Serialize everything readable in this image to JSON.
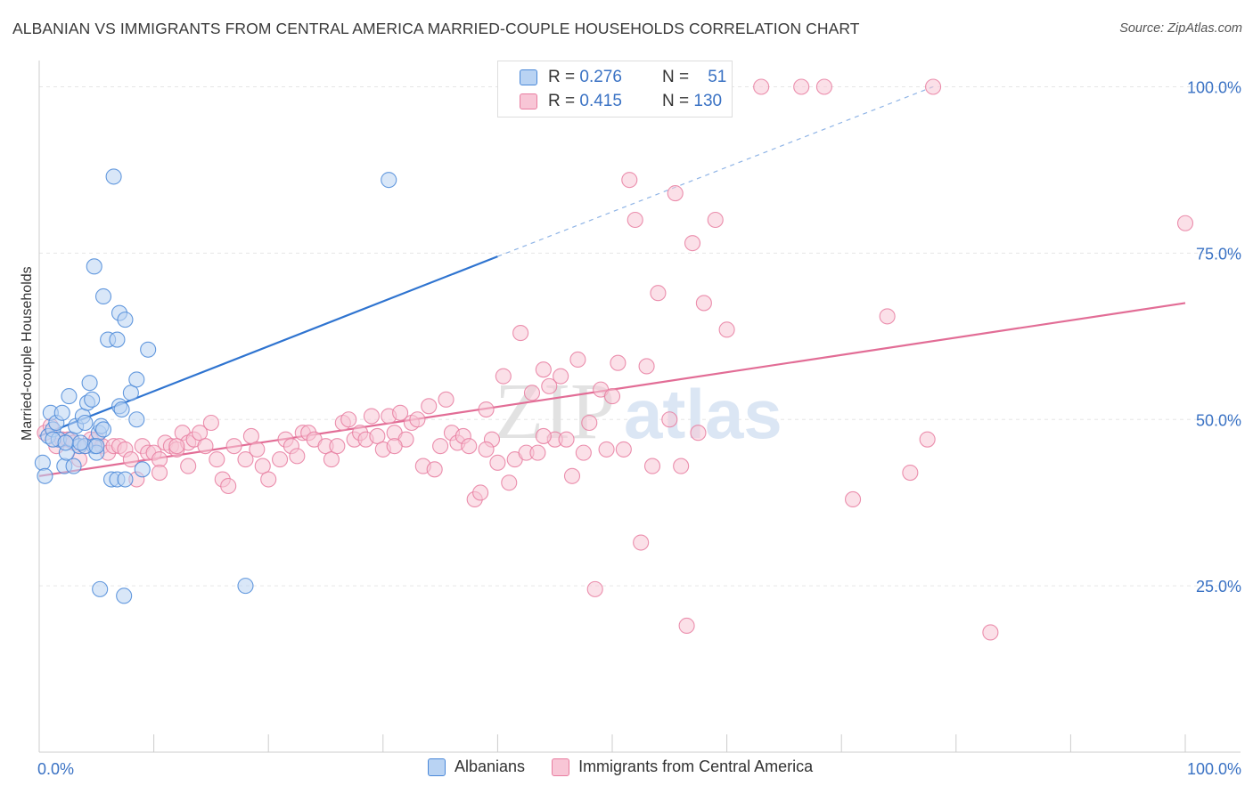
{
  "title": "ALBANIAN VS IMMIGRANTS FROM CENTRAL AMERICA MARRIED-COUPLE HOUSEHOLDS CORRELATION CHART",
  "source": "Source: ZipAtlas.com",
  "watermark": {
    "zip": "ZIP",
    "atlas": "atlas"
  },
  "legend": {
    "r_label": "R =",
    "n_label": "N =",
    "rows": [
      {
        "r": "0.276",
        "n": "51",
        "color": "#4a88d8",
        "fill": "#b9d3f3"
      },
      {
        "r": "0.415",
        "n": "130",
        "color": "#e87da0",
        "fill": "#f8c6d6"
      }
    ]
  },
  "bottom_legend": [
    "Albanians",
    "Immigrants from Central America"
  ],
  "chart_data": {
    "type": "scatter",
    "xlabel": "",
    "ylabel": "Married-couple Households",
    "x_tick_labels": [
      "0.0%",
      "100.0%"
    ],
    "y_tick_labels": [
      "100.0%",
      "75.0%",
      "50.0%",
      "25.0%"
    ],
    "y_ticks": [
      100,
      75,
      50,
      25
    ],
    "xlim": [
      0,
      100
    ],
    "ylim": [
      0,
      102
    ],
    "grid": "horizontal dashed",
    "series": [
      {
        "name": "Albanians",
        "color": "#4a88d8",
        "fill": "#b9d3f3",
        "trend": {
          "x0": 0,
          "y0": 47.5,
          "x1": 40,
          "y1": 74.5,
          "dashed_to_x": 78,
          "dashed_to_y": 100
        },
        "points": [
          [
            0.3,
            43.5
          ],
          [
            0.5,
            41.5
          ],
          [
            0.8,
            47.5
          ],
          [
            1.0,
            51
          ],
          [
            1.2,
            48.5
          ],
          [
            1.5,
            49.5
          ],
          [
            1.7,
            47
          ],
          [
            2.0,
            51
          ],
          [
            2.2,
            43
          ],
          [
            2.4,
            45
          ],
          [
            2.6,
            53.5
          ],
          [
            2.8,
            47
          ],
          [
            3.0,
            43
          ],
          [
            3.2,
            49
          ],
          [
            3.5,
            46
          ],
          [
            3.8,
            50.5
          ],
          [
            4.0,
            49.5
          ],
          [
            4.2,
            52.5
          ],
          [
            4.4,
            55.5
          ],
          [
            4.6,
            53
          ],
          [
            4.8,
            46
          ],
          [
            5.0,
            45
          ],
          [
            5.2,
            48
          ],
          [
            5.4,
            49
          ],
          [
            5.6,
            48.5
          ],
          [
            4.0,
            46
          ],
          [
            3.6,
            46.5
          ],
          [
            5.0,
            46
          ],
          [
            7.0,
            52
          ],
          [
            8.0,
            54
          ],
          [
            8.5,
            50
          ],
          [
            6.0,
            62
          ],
          [
            6.5,
            86.5
          ],
          [
            4.8,
            73
          ],
          [
            5.6,
            68.5
          ],
          [
            6.8,
            62
          ],
          [
            6.3,
            41
          ],
          [
            6.8,
            41
          ],
          [
            7.0,
            66
          ],
          [
            7.5,
            65
          ],
          [
            8.5,
            56
          ],
          [
            9.5,
            60.5
          ],
          [
            7.5,
            41
          ],
          [
            9.0,
            42.5
          ],
          [
            5.3,
            24.5
          ],
          [
            7.4,
            23.5
          ],
          [
            18.0,
            25
          ],
          [
            30.5,
            86
          ],
          [
            7.2,
            51.5
          ],
          [
            1.2,
            47
          ],
          [
            2.3,
            46.5
          ]
        ]
      },
      {
        "name": "Immigrants from Central America",
        "color": "#e87da0",
        "fill": "#f8c6d6",
        "trend": {
          "x0": 0,
          "y0": 41.5,
          "x1": 100,
          "y1": 67.5
        },
        "points": [
          [
            0.5,
            48
          ],
          [
            1.0,
            49
          ],
          [
            1.5,
            46
          ],
          [
            2.0,
            47
          ],
          [
            2.5,
            47
          ],
          [
            3.0,
            46.5
          ],
          [
            3.5,
            44
          ],
          [
            4.0,
            46
          ],
          [
            4.5,
            47
          ],
          [
            5.0,
            47
          ],
          [
            5.5,
            46
          ],
          [
            6.0,
            45
          ],
          [
            6.5,
            46
          ],
          [
            7.0,
            46
          ],
          [
            7.5,
            45.5
          ],
          [
            8.0,
            44
          ],
          [
            8.5,
            41
          ],
          [
            9.0,
            46
          ],
          [
            9.5,
            45
          ],
          [
            10.0,
            45
          ],
          [
            10.5,
            44
          ],
          [
            11.0,
            46.5
          ],
          [
            11.5,
            46
          ],
          [
            12.0,
            45.5
          ],
          [
            12.5,
            48
          ],
          [
            13.0,
            46.5
          ],
          [
            13.5,
            47
          ],
          [
            14.0,
            48
          ],
          [
            14.5,
            46
          ],
          [
            15.0,
            49.5
          ],
          [
            15.5,
            44
          ],
          [
            16.0,
            41
          ],
          [
            16.5,
            40
          ],
          [
            17.0,
            46
          ],
          [
            18.0,
            44
          ],
          [
            18.5,
            47.5
          ],
          [
            19.0,
            45.5
          ],
          [
            19.5,
            43
          ],
          [
            20.0,
            41
          ],
          [
            21.0,
            44
          ],
          [
            21.5,
            47
          ],
          [
            22.0,
            46
          ],
          [
            23.0,
            48
          ],
          [
            23.5,
            48
          ],
          [
            24.0,
            47
          ],
          [
            25.0,
            46
          ],
          [
            25.5,
            44
          ],
          [
            26.0,
            46
          ],
          [
            26.5,
            49.5
          ],
          [
            27.0,
            50
          ],
          [
            27.5,
            47
          ],
          [
            28.0,
            48
          ],
          [
            28.5,
            47
          ],
          [
            29.0,
            50.5
          ],
          [
            29.5,
            47.5
          ],
          [
            30.0,
            45.5
          ],
          [
            30.5,
            50.5
          ],
          [
            31.0,
            48
          ],
          [
            31.5,
            51
          ],
          [
            32.0,
            47
          ],
          [
            32.5,
            49.5
          ],
          [
            33.0,
            50
          ],
          [
            33.5,
            43
          ],
          [
            34.0,
            52
          ],
          [
            34.5,
            42.5
          ],
          [
            35.0,
            46
          ],
          [
            35.5,
            53
          ],
          [
            36.0,
            48
          ],
          [
            36.5,
            46.5
          ],
          [
            37.0,
            47.5
          ],
          [
            37.5,
            46
          ],
          [
            38.0,
            38
          ],
          [
            38.5,
            39
          ],
          [
            39.0,
            51.5
          ],
          [
            39.5,
            47
          ],
          [
            40.0,
            43.5
          ],
          [
            40.5,
            56.5
          ],
          [
            41.0,
            40.5
          ],
          [
            41.5,
            44
          ],
          [
            42.0,
            63
          ],
          [
            42.5,
            45
          ],
          [
            43.0,
            54
          ],
          [
            43.5,
            45
          ],
          [
            44.0,
            57.5
          ],
          [
            44.5,
            55
          ],
          [
            45.0,
            47
          ],
          [
            45.5,
            56.5
          ],
          [
            46.0,
            47
          ],
          [
            46.5,
            41.5
          ],
          [
            47.0,
            59
          ],
          [
            47.5,
            45
          ],
          [
            48.0,
            49.5
          ],
          [
            48.5,
            24.5
          ],
          [
            49.0,
            54.5
          ],
          [
            49.5,
            45.5
          ],
          [
            50.0,
            53.5
          ],
          [
            50.5,
            58.5
          ],
          [
            51.0,
            45.5
          ],
          [
            51.5,
            86
          ],
          [
            52.0,
            80
          ],
          [
            52.5,
            31.5
          ],
          [
            53.0,
            58
          ],
          [
            53.5,
            43
          ],
          [
            54.0,
            69
          ],
          [
            55.0,
            50
          ],
          [
            55.5,
            84
          ],
          [
            56.0,
            43
          ],
          [
            56.5,
            19
          ],
          [
            57.0,
            76.5
          ],
          [
            57.5,
            48
          ],
          [
            58.0,
            67.5
          ],
          [
            59.0,
            80
          ],
          [
            60.0,
            63.5
          ],
          [
            63.0,
            100
          ],
          [
            66.5,
            100
          ],
          [
            68.5,
            100
          ],
          [
            71.0,
            38
          ],
          [
            74.0,
            65.5
          ],
          [
            76.0,
            42
          ],
          [
            77.5,
            47
          ],
          [
            78.0,
            100
          ],
          [
            83.0,
            18
          ],
          [
            100.0,
            79.5
          ],
          [
            10.5,
            42
          ],
          [
            13.0,
            43
          ],
          [
            22.5,
            44.5
          ],
          [
            31.0,
            46
          ],
          [
            39.0,
            45.5
          ],
          [
            44.0,
            47.5
          ],
          [
            12.0,
            46
          ]
        ]
      }
    ]
  }
}
